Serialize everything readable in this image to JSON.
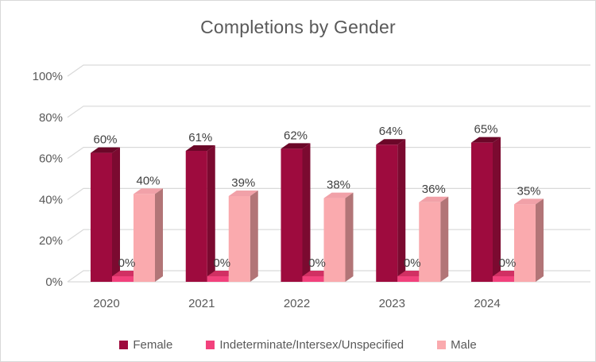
{
  "window": {
    "background": "#FFFFFF",
    "border_color": "#D9D9D9"
  },
  "chart_data": {
    "type": "bar",
    "variant": "3d-clustered-column",
    "title": "Completions by Gender",
    "categories": [
      "2020",
      "2021",
      "2022",
      "2023",
      "2024"
    ],
    "series": [
      {
        "name": "Female",
        "values": [
          60,
          61,
          62,
          64,
          65
        ],
        "color": "#9E0B3E",
        "color_top": "#6B0728",
        "color_side": "#7B0A30"
      },
      {
        "name": "Indeterminate/Intersex/Unspecified",
        "values": [
          0,
          0,
          0,
          0,
          0
        ],
        "color": "#F2417C",
        "color_top": "#D13063",
        "color_side": "#C92B5C"
      },
      {
        "name": "Male",
        "values": [
          40,
          39,
          38,
          36,
          35
        ],
        "color": "#FAAAAE",
        "color_top": "#F1A1A8",
        "color_side": "#B27577"
      }
    ],
    "data_label_format": "percent",
    "y_axis": {
      "ticks": [
        "0%",
        "20%",
        "40%",
        "60%",
        "80%",
        "100%"
      ],
      "min": 0,
      "max": 100,
      "major_unit": 20
    },
    "x_axis_label_color": "#595959",
    "legend": {
      "position": "bottom"
    },
    "gridline_color": "#D9D9D9",
    "text_color": "#595959",
    "label_color": "#404040"
  }
}
